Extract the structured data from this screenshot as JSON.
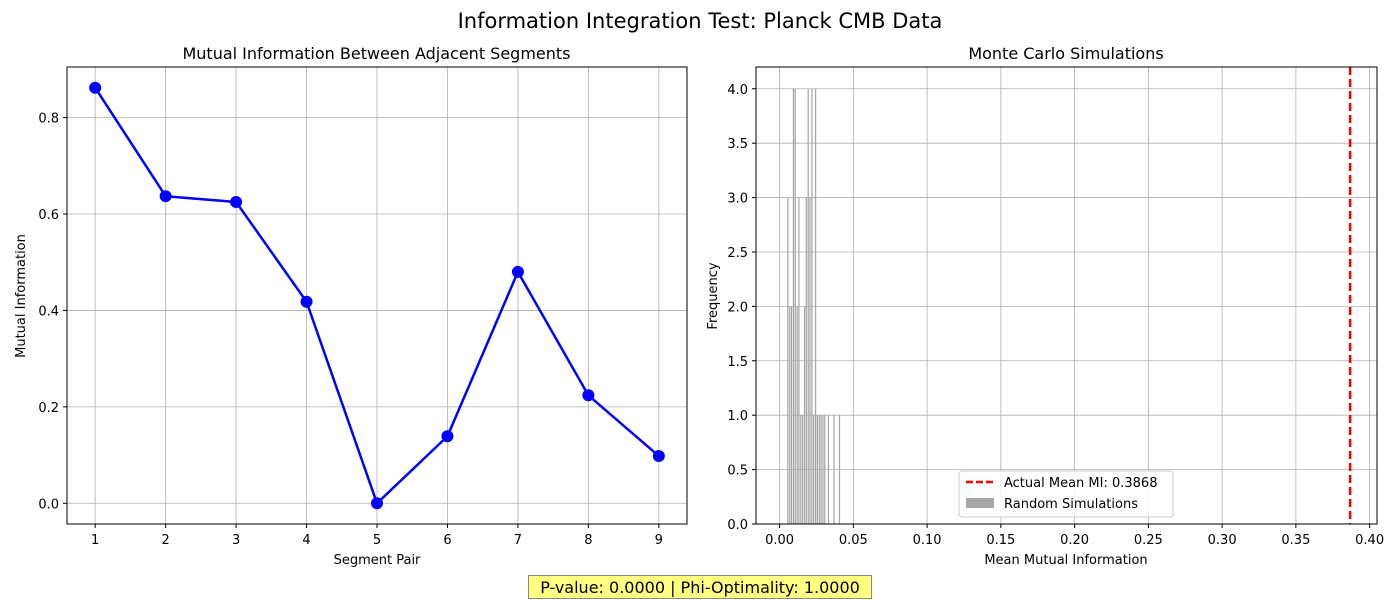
{
  "suptitle": "Information Integration Test: Planck CMB Data",
  "footer_text": "P-value: 0.0000 | Phi-Optimality: 1.0000",
  "footer_color": "#ffff80",
  "chart_data": [
    {
      "type": "line",
      "title": "Mutual Information Between Adjacent Segments",
      "xlabel": "Segment Pair",
      "ylabel": "Mutual Information",
      "x": [
        1,
        2,
        3,
        4,
        5,
        6,
        7,
        8,
        9
      ],
      "y": [
        0.862,
        0.637,
        0.625,
        0.418,
        0.0,
        0.139,
        0.48,
        0.224,
        0.098
      ],
      "xlim": [
        0.6,
        9.4
      ],
      "ylim": [
        -0.043,
        0.905
      ],
      "xticks": [
        1,
        2,
        3,
        4,
        5,
        6,
        7,
        8,
        9
      ],
      "yticks": [
        0.0,
        0.2,
        0.4,
        0.6,
        0.8
      ],
      "ytick_labels": [
        "0.0",
        "0.2",
        "0.4",
        "0.6",
        "0.8"
      ],
      "color": "#0000ff",
      "marker": "circle",
      "grid": true
    },
    {
      "type": "bar",
      "title": "Monte Carlo Simulations",
      "xlabel": "Mean Mutual Information",
      "ylabel": "Frequency",
      "xlim": [
        -0.016,
        0.405
      ],
      "ylim": [
        0,
        4.2
      ],
      "xticks": [
        0.0,
        0.05,
        0.1,
        0.15,
        0.2,
        0.25,
        0.3,
        0.35,
        0.4
      ],
      "xtick_labels": [
        "0.00",
        "0.05",
        "0.10",
        "0.15",
        "0.20",
        "0.25",
        "0.30",
        "0.35",
        "0.40"
      ],
      "yticks": [
        0.0,
        0.5,
        1.0,
        1.5,
        2.0,
        2.5,
        3.0,
        3.5,
        4.0
      ],
      "ytick_labels": [
        "0.0",
        "0.5",
        "1.0",
        "1.5",
        "2.0",
        "2.5",
        "3.0",
        "3.5",
        "4.0"
      ],
      "bin_width": 0.00125,
      "bins": [
        {
          "x": 0.0058,
          "count": 3
        },
        {
          "x": 0.0071,
          "count": 2
        },
        {
          "x": 0.0083,
          "count": 2
        },
        {
          "x": 0.0096,
          "count": 4
        },
        {
          "x": 0.0108,
          "count": 4
        },
        {
          "x": 0.0121,
          "count": 2
        },
        {
          "x": 0.0133,
          "count": 3
        },
        {
          "x": 0.0146,
          "count": 1
        },
        {
          "x": 0.0158,
          "count": 1
        },
        {
          "x": 0.0171,
          "count": 2
        },
        {
          "x": 0.0183,
          "count": 3
        },
        {
          "x": 0.0196,
          "count": 4
        },
        {
          "x": 0.0208,
          "count": 3
        },
        {
          "x": 0.0221,
          "count": 4
        },
        {
          "x": 0.0233,
          "count": 1
        },
        {
          "x": 0.0246,
          "count": 4
        },
        {
          "x": 0.0258,
          "count": 1
        },
        {
          "x": 0.0271,
          "count": 1
        },
        {
          "x": 0.0283,
          "count": 1
        },
        {
          "x": 0.0296,
          "count": 1
        },
        {
          "x": 0.0308,
          "count": 1
        },
        {
          "x": 0.0333,
          "count": 1
        },
        {
          "x": 0.0371,
          "count": 1
        },
        {
          "x": 0.0408,
          "count": 1
        }
      ],
      "bar_color": "#a6a6a6",
      "vline_x": 0.3868,
      "vline_color": "#ff0000",
      "legend": [
        {
          "label": "Actual Mean MI: 0.3868",
          "kind": "dashed-line",
          "color": "#ff0000"
        },
        {
          "label": "Random Simulations",
          "kind": "patch",
          "color": "#a6a6a6"
        }
      ],
      "legend_position": "lower-center",
      "grid": true
    }
  ]
}
